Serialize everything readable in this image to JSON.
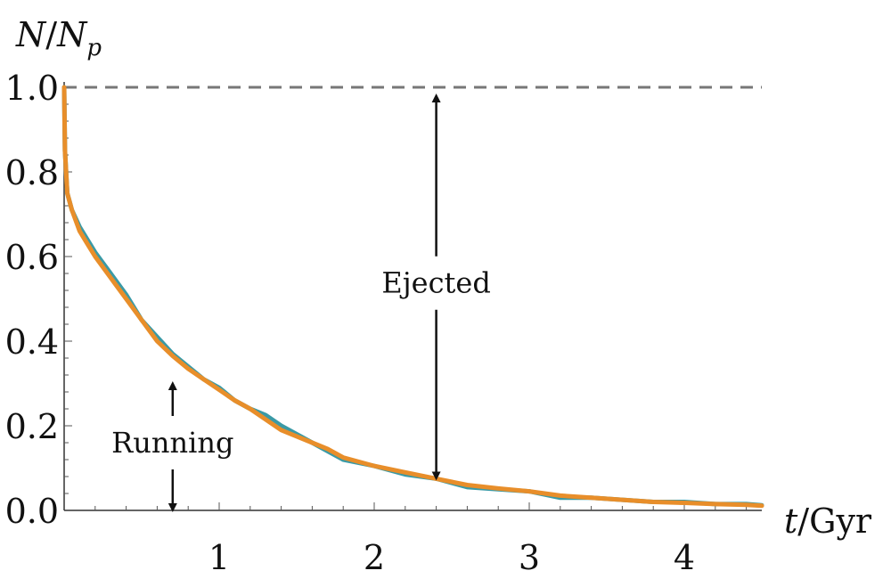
{
  "chart_data": {
    "type": "line",
    "xlabel": "t/Gyr",
    "ylabel": "N/N_p",
    "xlim": [
      0,
      4.5
    ],
    "ylim": [
      0,
      1.0
    ],
    "x_ticks": [
      1,
      2,
      3,
      4
    ],
    "y_ticks": [
      0.0,
      0.2,
      0.4,
      0.6,
      0.8,
      1.0
    ],
    "x_tick_labels": [
      "1",
      "2",
      "3",
      "4"
    ],
    "y_tick_labels": [
      "0.0",
      "0.2",
      "0.4",
      "0.6",
      "0.8",
      "1.0"
    ],
    "reference_line": {
      "y": 1.0,
      "style": "dashed",
      "color": "#777777"
    },
    "series": [
      {
        "color": "#3a9aa6",
        "x": [
          0.0,
          0.005,
          0.02,
          0.05,
          0.1,
          0.15,
          0.2,
          0.3,
          0.4,
          0.5,
          0.6,
          0.7,
          0.8,
          0.9,
          1.0,
          1.1,
          1.2,
          1.3,
          1.4,
          1.5,
          1.6,
          1.7,
          1.8,
          2.0,
          2.2,
          2.4,
          2.6,
          2.8,
          3.0,
          3.2,
          3.4,
          3.6,
          3.8,
          4.0,
          4.2,
          4.4,
          4.5
        ],
        "y": [
          1.0,
          0.85,
          0.75,
          0.71,
          0.67,
          0.64,
          0.61,
          0.56,
          0.51,
          0.45,
          0.41,
          0.37,
          0.34,
          0.31,
          0.29,
          0.26,
          0.24,
          0.225,
          0.2,
          0.18,
          0.16,
          0.14,
          0.12,
          0.105,
          0.085,
          0.075,
          0.055,
          0.05,
          0.045,
          0.03,
          0.03,
          0.025,
          0.02,
          0.02,
          0.015,
          0.015,
          0.012
        ]
      },
      {
        "color": "#e88e2a",
        "x": [
          0.0,
          0.005,
          0.02,
          0.05,
          0.1,
          0.15,
          0.2,
          0.3,
          0.4,
          0.5,
          0.6,
          0.7,
          0.8,
          0.9,
          1.0,
          1.1,
          1.2,
          1.3,
          1.4,
          1.5,
          1.6,
          1.7,
          1.8,
          2.0,
          2.2,
          2.4,
          2.6,
          2.8,
          3.0,
          3.2,
          3.4,
          3.6,
          3.8,
          4.0,
          4.2,
          4.4,
          4.5
        ],
        "y": [
          1.0,
          0.85,
          0.75,
          0.71,
          0.66,
          0.63,
          0.6,
          0.55,
          0.5,
          0.45,
          0.4,
          0.365,
          0.335,
          0.31,
          0.285,
          0.26,
          0.24,
          0.215,
          0.19,
          0.175,
          0.16,
          0.145,
          0.125,
          0.105,
          0.09,
          0.075,
          0.06,
          0.052,
          0.045,
          0.035,
          0.03,
          0.025,
          0.02,
          0.018,
          0.015,
          0.013,
          0.011
        ]
      }
    ],
    "annotations": [
      {
        "text": "Ejected",
        "x": 2.4,
        "y_from": 0.075,
        "y_to": 1.0
      },
      {
        "text": "Running",
        "x": 0.7,
        "y_from": 0.0,
        "y_to": 0.32
      }
    ]
  }
}
